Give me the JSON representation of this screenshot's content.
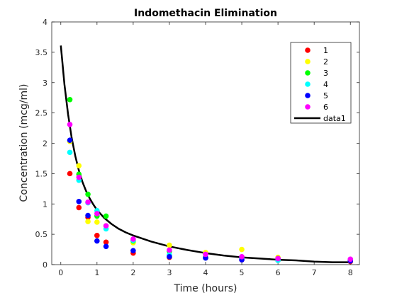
{
  "chart_data": {
    "type": "scatter",
    "title": "Indomethacin Elimination",
    "xlabel": "Time (hours)",
    "ylabel": "Concentration (mcg/ml)",
    "xlim": [
      -0.25,
      8.25
    ],
    "ylim": [
      0,
      4
    ],
    "x_ticks": [
      0,
      1,
      2,
      3,
      4,
      5,
      6,
      7,
      8
    ],
    "y_ticks": [
      0,
      0.5,
      1,
      1.5,
      2,
      2.5,
      3,
      3.5,
      4
    ],
    "x_tick_labels": [
      "0",
      "1",
      "2",
      "3",
      "4",
      "5",
      "6",
      "7",
      "8"
    ],
    "y_tick_labels": [
      "0",
      "0.5",
      "1",
      "1.5",
      "2",
      "2.5",
      "3",
      "3.5",
      "4"
    ],
    "grid": false,
    "legend_position": "top-right",
    "x": [
      0.25,
      0.5,
      0.75,
      1,
      1.25,
      2,
      3,
      4,
      5,
      6,
      8
    ],
    "series": [
      {
        "name": "1",
        "color": "#ff0000",
        "values": [
          1.5,
          0.94,
          0.78,
          0.48,
          0.37,
          0.19,
          0.12,
          0.11,
          0.08,
          0.07,
          0.05
        ]
      },
      {
        "name": "2",
        "color": "#ffff00",
        "values": [
          2.03,
          1.63,
          0.71,
          0.7,
          0.64,
          0.36,
          0.32,
          0.2,
          0.25,
          0.12,
          0.08
        ]
      },
      {
        "name": "3",
        "color": "#00ff00",
        "values": [
          2.72,
          1.49,
          1.16,
          0.8,
          0.8,
          0.39,
          0.22,
          0.12,
          0.11,
          0.08,
          0.08
        ]
      },
      {
        "name": "4",
        "color": "#00ffff",
        "values": [
          1.85,
          1.39,
          1.02,
          0.89,
          0.59,
          0.4,
          0.16,
          0.11,
          0.1,
          0.07,
          0.07
        ]
      },
      {
        "name": "5",
        "color": "#0000ff",
        "values": [
          2.05,
          1.04,
          0.81,
          0.39,
          0.3,
          0.23,
          0.13,
          0.11,
          0.08,
          0.1,
          0.06
        ]
      },
      {
        "name": "6",
        "color": "#ff00ff",
        "values": [
          2.31,
          1.44,
          1.03,
          0.84,
          0.64,
          0.42,
          0.24,
          0.17,
          0.13,
          0.1,
          0.09
        ]
      }
    ],
    "fit": {
      "name": "data1",
      "color": "#000000",
      "x": [
        0,
        0.1,
        0.2,
        0.3,
        0.4,
        0.5,
        0.6,
        0.7,
        0.8,
        0.9,
        1,
        1.2,
        1.4,
        1.6,
        1.8,
        2,
        2.5,
        3,
        3.5,
        4,
        4.5,
        5,
        5.5,
        6,
        6.5,
        7,
        7.5,
        8
      ],
      "values": [
        3.61,
        2.97,
        2.48,
        2.09,
        1.79,
        1.55,
        1.36,
        1.21,
        1.09,
        0.99,
        0.9,
        0.77,
        0.67,
        0.59,
        0.53,
        0.48,
        0.38,
        0.3,
        0.24,
        0.19,
        0.15,
        0.12,
        0.1,
        0.08,
        0.07,
        0.05,
        0.04,
        0.04
      ]
    }
  }
}
